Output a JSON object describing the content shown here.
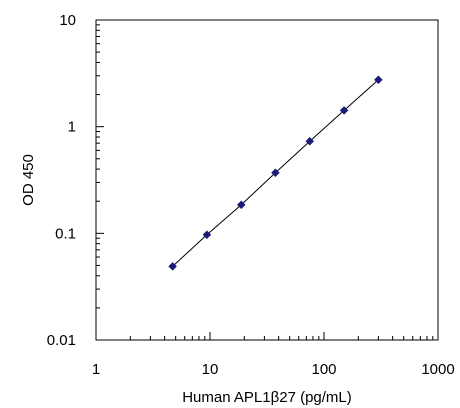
{
  "chart_data": {
    "type": "scatter",
    "title": "",
    "xlabel": "Human APL1β27 (pg/mL)",
    "ylabel": "OD 450",
    "x_scale": "log",
    "y_scale": "log",
    "xlim": [
      1,
      1000
    ],
    "ylim": [
      0.01,
      10
    ],
    "x_ticks": [
      "1",
      "10",
      "100",
      "1000"
    ],
    "y_ticks": [
      "0.01",
      "0.1",
      "1",
      "10"
    ],
    "grid": false,
    "legend": "none",
    "series": [
      {
        "x": [
          4.7,
          9.4,
          18.8,
          37.5,
          75,
          150,
          300
        ],
        "y": [
          0.049,
          0.097,
          0.185,
          0.37,
          0.73,
          1.42,
          2.75
        ],
        "marker": "diamond",
        "color": "#1a1a7a",
        "line_color": "#000000"
      }
    ]
  }
}
